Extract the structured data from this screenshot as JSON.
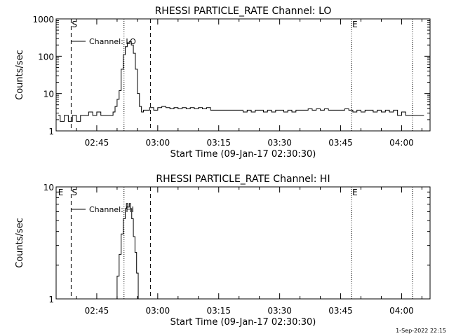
{
  "footer": {
    "timestamp": "1-Sep-2022 22:15"
  },
  "chart_data": [
    {
      "type": "line",
      "title": "RHESSI PARTICLE_RATE Channel: LO",
      "xlabel": "Start Time (09-Jan-17 02:30:30)",
      "ylabel": "Counts/sec",
      "yscale": "log",
      "ylim": [
        1,
        1000
      ],
      "yticks": [
        1,
        10,
        100,
        1000
      ],
      "ytick_labels": [
        "1",
        "10",
        "100",
        "1000"
      ],
      "xlim_min": [
        5,
        97
      ],
      "xticks_min": [
        15,
        30,
        45,
        60,
        75,
        90
      ],
      "xtick_labels": [
        "02:45",
        "03:00",
        "03:15",
        "03:30",
        "03:45",
        "04:00"
      ],
      "series": [
        {
          "name": "Channel: LO",
          "x_min": [
            5.5,
            6,
            7,
            8,
            9,
            10,
            11,
            12,
            13,
            14,
            15,
            16,
            17,
            18,
            19,
            19.5,
            20,
            20.5,
            21,
            21.5,
            22,
            22.5,
            23,
            23.5,
            24,
            24.5,
            25,
            25.5,
            26,
            26.5,
            27,
            28,
            29,
            30,
            31,
            32,
            33,
            34,
            35,
            36,
            37,
            38,
            39,
            40,
            41,
            42,
            43,
            44,
            45,
            46,
            47,
            48,
            49,
            50,
            51,
            52,
            53,
            54,
            55,
            56,
            57,
            58,
            59,
            60,
            61,
            62,
            63,
            64,
            65,
            66,
            67,
            68,
            69,
            70,
            71,
            72,
            73,
            74,
            75,
            76,
            77,
            78,
            79,
            80,
            81,
            82,
            83,
            84,
            85,
            86,
            87,
            88,
            89,
            90,
            91,
            92,
            93,
            94,
            95,
            95.5
          ],
          "y": [
            2.6,
            1.8,
            2.6,
            1.8,
            2.6,
            1.8,
            2.6,
            2.6,
            3.2,
            2.6,
            3.2,
            2.6,
            2.6,
            2.6,
            3.2,
            4.5,
            7,
            12,
            45,
            110,
            180,
            230,
            250,
            200,
            120,
            45,
            10,
            4.5,
            3.2,
            3.6,
            3.6,
            4.2,
            3.6,
            4.2,
            4.5,
            4.2,
            3.9,
            4.2,
            3.9,
            4.2,
            3.9,
            4.2,
            3.9,
            4.2,
            3.9,
            4.2,
            3.6,
            3.6,
            3.6,
            3.6,
            3.6,
            3.6,
            3.6,
            3.6,
            3.2,
            3.6,
            3.2,
            3.6,
            3.6,
            3.2,
            3.6,
            3.2,
            3.6,
            3.6,
            3.2,
            3.6,
            3.2,
            3.6,
            3.6,
            3.6,
            3.9,
            3.6,
            3.9,
            3.6,
            3.9,
            3.6,
            3.6,
            3.6,
            3.6,
            3.9,
            3.6,
            3.2,
            3.6,
            3.2,
            3.6,
            3.6,
            3.2,
            3.6,
            3.2,
            3.6,
            3.2,
            3.6,
            2.6,
            3.2,
            2.6,
            2.6,
            2.6,
            2.6,
            2.6,
            2.6
          ]
        }
      ],
      "markers": [
        {
          "label": "S",
          "x_min": 8.7,
          "style": "dashed"
        },
        {
          "label": "",
          "x_min": 21.7,
          "style": "dotted"
        },
        {
          "label": "",
          "x_min": 28.2,
          "style": "dashed"
        },
        {
          "label": "E",
          "x_min": 77.7,
          "style": "dotted"
        },
        {
          "label": "",
          "x_min": 92.7,
          "style": "dotted"
        }
      ]
    },
    {
      "type": "line",
      "title": "RHESSI PARTICLE_RATE Channel: HI",
      "xlabel": "Start Time (09-Jan-17 02:30:30)",
      "ylabel": "Counts/sec",
      "yscale": "log",
      "ylim": [
        1,
        10
      ],
      "yticks": [
        1,
        10
      ],
      "ytick_labels": [
        "1",
        "10"
      ],
      "xlim_min": [
        5,
        97
      ],
      "xticks_min": [
        15,
        30,
        45,
        60,
        75,
        90
      ],
      "xtick_labels": [
        "02:45",
        "03:00",
        "03:15",
        "03:30",
        "03:45",
        "04:00"
      ],
      "series": [
        {
          "name": "Channel: HI",
          "x_min": [
            19.6,
            20,
            20.5,
            21,
            21.5,
            22,
            22.3,
            22.6,
            23,
            23.3,
            23.6,
            24,
            24.4,
            24.8,
            25.2
          ],
          "y": [
            1,
            1.6,
            2.5,
            3.8,
            5.2,
            6.4,
            7.1,
            6.6,
            7.1,
            6.4,
            5.2,
            3.6,
            2.6,
            1.7,
            1
          ]
        }
      ],
      "markers": [
        {
          "label": "E",
          "x_min": 5.3,
          "style": "none"
        },
        {
          "label": "S",
          "x_min": 8.7,
          "style": "dashed"
        },
        {
          "label": "",
          "x_min": 21.7,
          "style": "dotted"
        },
        {
          "label": "",
          "x_min": 28.2,
          "style": "dashed"
        },
        {
          "label": "E",
          "x_min": 77.7,
          "style": "dotted"
        },
        {
          "label": "",
          "x_min": 92.7,
          "style": "dotted"
        }
      ]
    }
  ]
}
